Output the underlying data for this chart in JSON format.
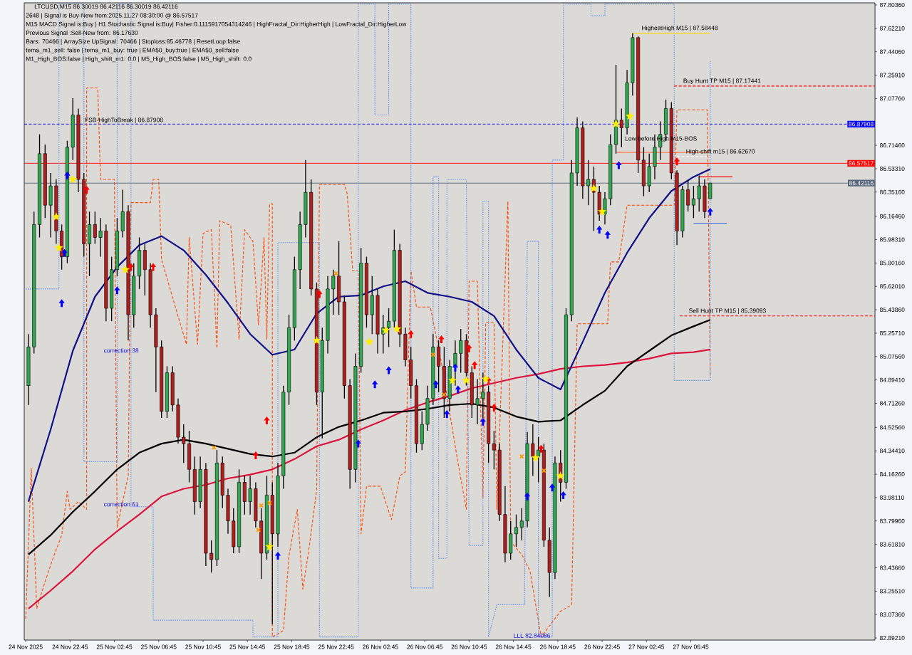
{
  "chart_data": {
    "type": "candlestick",
    "title": "LTCUSD,M15  86.30019 86.42116 86.30019 86.42116",
    "x": [
      "2025-11-24T19:00",
      "2025-11-24T19:30",
      "2025-11-24T20:00",
      "2025-11-24T20:30",
      "2025-11-24T21:00",
      "2025-11-24T21:30",
      "2025-11-24T22:00",
      "2025-11-24T22:30",
      "2025-11-24T23:00",
      "2025-11-24T23:30",
      "2025-11-25T00:00",
      "2025-11-25T00:30",
      "2025-11-25T01:00",
      "2025-11-25T01:30",
      "2025-11-25T02:00",
      "2025-11-25T02:30",
      "2025-11-25T03:00",
      "2025-11-25T03:30",
      "2025-11-25T04:00",
      "2025-11-25T04:30",
      "2025-11-25T05:00",
      "2025-11-25T05:30",
      "2025-11-25T06:00",
      "2025-11-25T06:30",
      "2025-11-25T07:00",
      "2025-11-25T07:30",
      "2025-11-25T08:00",
      "2025-11-25T08:30",
      "2025-11-25T09:00",
      "2025-11-25T09:30",
      "2025-11-25T10:00",
      "2025-11-25T10:30",
      "2025-11-25T11:00",
      "2025-11-25T11:30",
      "2025-11-25T12:00",
      "2025-11-25T12:30",
      "2025-11-25T13:00",
      "2025-11-25T13:30",
      "2025-11-25T14:00",
      "2025-11-25T14:30",
      "2025-11-25T15:00",
      "2025-11-25T15:30",
      "2025-11-25T16:00",
      "2025-11-25T16:30",
      "2025-11-25T17:00",
      "2025-11-25T17:30",
      "2025-11-25T18:00",
      "2025-11-25T18:30",
      "2025-11-25T19:00",
      "2025-11-25T19:30",
      "2025-11-25T20:00",
      "2025-11-25T20:30",
      "2025-11-25T21:00",
      "2025-11-25T21:30",
      "2025-11-25T22:00",
      "2025-11-25T22:30",
      "2025-11-25T23:00",
      "2025-11-25T23:30",
      "2025-11-26T00:00",
      "2025-11-26T00:30",
      "2025-11-26T01:00",
      "2025-11-26T01:30",
      "2025-11-26T02:00",
      "2025-11-26T02:30",
      "2025-11-26T03:00",
      "2025-11-26T03:30",
      "2025-11-26T04:00",
      "2025-11-26T04:30",
      "2025-11-26T05:00",
      "2025-11-26T05:30",
      "2025-11-26T06:00",
      "2025-11-26T06:30",
      "2025-11-26T07:00",
      "2025-11-26T07:30",
      "2025-11-26T08:00",
      "2025-11-26T08:30",
      "2025-11-26T09:00",
      "2025-11-26T09:30",
      "2025-11-26T10:00",
      "2025-11-26T10:30",
      "2025-11-26T11:00",
      "2025-11-26T11:30",
      "2025-11-26T12:00",
      "2025-11-26T12:30",
      "2025-11-26T13:00",
      "2025-11-26T13:30",
      "2025-11-26T14:00",
      "2025-11-26T14:30",
      "2025-11-26T15:00",
      "2025-11-26T15:30",
      "2025-11-26T16:00",
      "2025-11-26T16:30",
      "2025-11-26T17:00",
      "2025-11-26T17:30",
      "2025-11-26T18:00",
      "2025-11-26T18:30",
      "2025-11-26T19:00",
      "2025-11-26T19:30",
      "2025-11-26T20:00",
      "2025-11-26T20:30",
      "2025-11-26T21:00",
      "2025-11-26T21:30",
      "2025-11-26T22:00",
      "2025-11-26T22:30",
      "2025-11-26T23:00",
      "2025-11-26T23:30",
      "2025-11-27T00:00",
      "2025-11-27T00:30",
      "2025-11-27T01:00",
      "2025-11-27T01:30",
      "2025-11-27T02:00",
      "2025-11-27T02:30",
      "2025-11-27T03:00",
      "2025-11-27T03:30",
      "2025-11-27T04:00",
      "2025-11-27T04:30",
      "2025-11-27T05:00",
      "2025-11-27T05:30",
      "2025-11-27T06:00",
      "2025-11-27T06:30",
      "2025-11-27T07:00",
      "2025-11-27T07:30",
      "2025-11-27T08:00",
      "2025-11-27T08:30"
    ],
    "ohlc": [
      [
        84.85,
        85.25,
        84.7,
        85.15
      ],
      [
        85.15,
        86.2,
        85.1,
        86.1
      ],
      [
        86.1,
        86.8,
        86.0,
        86.65
      ],
      [
        86.65,
        86.72,
        86.15,
        86.25
      ],
      [
        86.25,
        86.5,
        86.0,
        86.4
      ],
      [
        86.4,
        86.45,
        85.95,
        86.05
      ],
      [
        86.05,
        86.1,
        85.75,
        85.85
      ],
      [
        85.85,
        86.75,
        85.8,
        86.7
      ],
      [
        86.7,
        87.08,
        86.6,
        86.95
      ],
      [
        86.95,
        87.0,
        86.35,
        86.45
      ],
      [
        86.45,
        86.5,
        85.85,
        85.95
      ],
      [
        85.95,
        86.2,
        85.7,
        86.1
      ],
      [
        86.1,
        86.2,
        85.95,
        86.0
      ],
      [
        86.0,
        86.15,
        85.85,
        86.05
      ],
      [
        86.05,
        86.1,
        85.35,
        85.45
      ],
      [
        85.45,
        85.85,
        85.35,
        85.75
      ],
      [
        85.75,
        86.15,
        85.7,
        86.05
      ],
      [
        86.05,
        86.37,
        86.0,
        86.2
      ],
      [
        86.2,
        86.25,
        85.2,
        85.4
      ],
      [
        85.4,
        85.8,
        85.3,
        85.7
      ],
      [
        85.7,
        86.0,
        85.6,
        85.9
      ],
      [
        85.9,
        85.95,
        85.55,
        85.75
      ],
      [
        85.75,
        85.8,
        85.3,
        85.4
      ],
      [
        85.4,
        85.45,
        84.8,
        85.15
      ],
      [
        85.15,
        85.2,
        84.6,
        84.65
      ],
      [
        84.65,
        85.0,
        84.6,
        84.95
      ],
      [
        84.95,
        85.0,
        84.65,
        84.7
      ],
      [
        84.7,
        84.75,
        84.4,
        84.45
      ],
      [
        84.45,
        84.55,
        84.25,
        84.4
      ],
      [
        84.4,
        84.5,
        84.1,
        84.2
      ],
      [
        84.2,
        84.3,
        83.85,
        83.95
      ],
      [
        83.95,
        84.3,
        83.9,
        84.2
      ],
      [
        84.2,
        84.25,
        83.45,
        83.55
      ],
      [
        83.55,
        83.65,
        83.4,
        83.5
      ],
      [
        83.5,
        84.35,
        83.45,
        84.25
      ],
      [
        84.25,
        84.3,
        83.9,
        84.0
      ],
      [
        84.0,
        84.05,
        83.7,
        83.8
      ],
      [
        83.8,
        83.9,
        83.55,
        83.6
      ],
      [
        83.6,
        84.2,
        83.55,
        84.1
      ],
      [
        84.1,
        84.15,
        83.85,
        83.95
      ],
      [
        83.95,
        84.15,
        83.85,
        84.05
      ],
      [
        84.05,
        84.1,
        83.75,
        83.8
      ],
      [
        83.8,
        83.9,
        83.35,
        83.55
      ],
      [
        83.55,
        84.15,
        83.5,
        84.0
      ],
      [
        84.0,
        84.1,
        83.0,
        83.7
      ],
      [
        83.7,
        84.25,
        83.6,
        84.15
      ],
      [
        84.15,
        84.85,
        84.05,
        84.8
      ],
      [
        84.8,
        85.4,
        84.7,
        85.3
      ],
      [
        85.3,
        85.85,
        85.2,
        85.75
      ],
      [
        85.75,
        86.2,
        85.6,
        86.1
      ],
      [
        86.1,
        86.6,
        86.0,
        86.35
      ],
      [
        86.35,
        86.45,
        85.55,
        85.6
      ],
      [
        85.6,
        85.65,
        84.7,
        84.8
      ],
      [
        84.8,
        85.3,
        84.44,
        85.2
      ],
      [
        85.2,
        85.7,
        85.1,
        85.6
      ],
      [
        85.6,
        85.75,
        85.4,
        85.7
      ],
      [
        85.7,
        85.97,
        85.4,
        85.5
      ],
      [
        85.5,
        85.55,
        84.75,
        84.85
      ],
      [
        84.85,
        84.9,
        84.05,
        84.2
      ],
      [
        84.2,
        85.1,
        84.1,
        85.0
      ],
      [
        85.0,
        85.92,
        84.95,
        85.8
      ],
      [
        85.8,
        85.85,
        85.3,
        85.4
      ],
      [
        85.4,
        85.7,
        85.25,
        85.55
      ],
      [
        85.55,
        85.6,
        85.1,
        85.25
      ],
      [
        85.25,
        85.4,
        85.1,
        85.3
      ],
      [
        85.3,
        85.45,
        85.15,
        85.35
      ],
      [
        85.35,
        86.06,
        85.3,
        85.9
      ],
      [
        85.9,
        85.95,
        85.15,
        85.25
      ],
      [
        85.25,
        85.3,
        85.0,
        85.05
      ],
      [
        85.05,
        85.15,
        84.75,
        84.85
      ],
      [
        84.85,
        84.9,
        84.33,
        84.4
      ],
      [
        84.4,
        84.65,
        84.35,
        84.55
      ],
      [
        84.55,
        84.85,
        84.5,
        84.75
      ],
      [
        84.75,
        85.25,
        84.7,
        85.15
      ],
      [
        85.15,
        85.2,
        84.8,
        85.0
      ],
      [
        85.0,
        85.15,
        84.6,
        84.75
      ],
      [
        84.75,
        85.05,
        84.65,
        85.0
      ],
      [
        85.0,
        85.2,
        84.85,
        85.1
      ],
      [
        85.1,
        85.29,
        84.95,
        85.2
      ],
      [
        85.2,
        85.25,
        84.85,
        84.95
      ],
      [
        84.95,
        85.0,
        84.6,
        84.7
      ],
      [
        84.7,
        84.9,
        84.55,
        84.75
      ],
      [
        84.75,
        84.95,
        84.6,
        84.8
      ],
      [
        84.8,
        84.85,
        84.25,
        84.4
      ],
      [
        84.4,
        84.5,
        84.2,
        84.35
      ],
      [
        84.35,
        84.4,
        83.8,
        83.85
      ],
      [
        83.85,
        84.07,
        83.48,
        83.55
      ],
      [
        83.55,
        83.8,
        83.5,
        83.7
      ],
      [
        83.7,
        83.85,
        83.6,
        83.75
      ],
      [
        83.75,
        83.9,
        83.65,
        83.8
      ],
      [
        83.8,
        84.49,
        83.75,
        84.4
      ],
      [
        84.4,
        84.55,
        84.15,
        84.3
      ],
      [
        84.3,
        84.45,
        84.1,
        84.35
      ],
      [
        84.35,
        84.4,
        83.6,
        83.65
      ],
      [
        83.65,
        83.75,
        83.21,
        83.4
      ],
      [
        83.4,
        84.3,
        83.35,
        84.25
      ],
      [
        84.25,
        84.35,
        83.95,
        84.1
      ],
      [
        84.1,
        85.45,
        84.05,
        85.4
      ],
      [
        85.4,
        86.6,
        85.35,
        86.5
      ],
      [
        86.5,
        86.93,
        86.4,
        86.85
      ],
      [
        86.85,
        86.9,
        86.3,
        86.4
      ],
      [
        86.4,
        86.6,
        86.25,
        86.45
      ],
      [
        86.45,
        86.55,
        86.05,
        86.35
      ],
      [
        86.35,
        86.4,
        86.13,
        86.18
      ],
      [
        86.18,
        86.35,
        86.1,
        86.3
      ],
      [
        86.3,
        86.8,
        86.25,
        86.72
      ],
      [
        86.72,
        87.34,
        86.65,
        86.91
      ],
      [
        86.91,
        87.0,
        86.7,
        86.85
      ],
      [
        86.85,
        87.3,
        86.8,
        87.2
      ],
      [
        87.2,
        87.58448,
        87.1,
        87.55
      ],
      [
        87.55,
        87.56,
        86.5,
        86.6
      ],
      [
        86.6,
        86.7,
        86.32,
        86.4
      ],
      [
        86.4,
        86.65,
        86.35,
        86.55
      ],
      [
        86.55,
        86.8,
        86.45,
        86.7
      ],
      [
        86.7,
        86.9,
        86.6,
        86.8
      ],
      [
        86.8,
        87.07,
        86.75,
        87.0
      ],
      [
        87.0,
        87.05,
        86.45,
        86.5
      ],
      [
        86.5,
        86.52,
        85.94,
        86.05
      ],
      [
        86.05,
        86.4,
        86.0,
        86.37
      ],
      [
        86.37,
        86.45,
        86.2,
        86.25
      ],
      [
        86.25,
        86.4,
        86.15,
        86.3
      ],
      [
        86.3,
        86.48,
        86.2,
        86.4
      ],
      [
        86.4,
        86.45,
        86.15,
        86.2
      ],
      [
        86.30019,
        86.42116,
        86.30019,
        86.42116
      ]
    ],
    "series": [
      {
        "type": "line",
        "color": "#ff4500",
        "line_style": "dashed",
        "x": [
          "2025-11-24T18:45",
          "2025-11-24T19:15",
          "2025-11-24T19:45",
          "2025-11-24T20:30",
          "2025-11-24T21:15",
          "2025-11-24T22:00",
          "2025-11-24T22:30",
          "2025-11-24T22:45",
          "2025-11-24T23:30",
          "2025-11-25T00:15",
          "2025-11-25T00:15",
          "2025-11-25T01:15",
          "2025-11-25T01:30",
          "2025-11-25T02:45",
          "2025-11-25T03:00",
          "2025-11-25T04:00",
          "2025-11-25T04:15",
          "2025-11-25T06:00",
          "2025-11-25T06:15",
          "2025-11-25T06:45",
          "2025-11-25T07:00",
          "2025-11-25T08:15",
          "2025-11-25T09:15",
          "2025-11-25T09:30",
          "2025-11-25T10:15",
          "2025-11-25T10:45",
          "2025-11-25T11:30",
          "2025-11-25T12:00",
          "2025-11-25T12:15",
          "2025-11-25T13:15",
          "2025-11-25T14:00",
          "2025-11-25T14:30",
          "2025-11-25T15:15",
          "2025-11-25T15:45",
          "2025-11-25T16:15",
          "2025-11-25T16:30",
          "2025-11-25T16:45",
          "2025-11-25T17:00",
          "2025-11-25T17:00",
          "2025-11-25T18:00",
          "2025-11-25T18:30",
          "2025-11-25T19:15",
          "2025-11-25T19:45",
          "2025-11-25T20:15",
          "2025-11-25T21:00",
          "2025-11-25T21:15",
          "2025-11-25T23:30",
          "2025-11-25T23:45",
          "2025-11-26T00:15",
          "2025-11-26T00:45",
          "2025-11-26T01:00",
          "2025-11-26T01:30",
          "2025-11-26T02:45",
          "2025-11-26T03:45",
          "2025-11-26T04:30",
          "2025-11-26T05:00",
          "2025-11-26T05:30",
          "2025-11-26T06:00",
          "2025-11-26T07:15",
          "2025-11-26T08:15",
          "2025-11-26T09:45",
          "2025-11-26T10:30",
          "2025-11-26T10:45",
          "2025-11-26T11:30",
          "2025-11-26T12:00",
          "2025-11-26T12:15",
          "2025-11-26T13:00",
          "2025-11-26T13:15",
          "2025-11-26T14:15",
          "2025-11-26T14:30",
          "2025-11-26T15:30",
          "2025-11-26T16:15",
          "2025-11-26T17:15",
          "2025-11-26T19:00",
          "2025-11-26T20:00",
          "2025-11-26T20:30",
          "2025-11-26T23:15",
          "2025-11-26T23:30",
          "2025-11-27T00:15",
          "2025-11-27T01:00",
          "2025-11-27T05:15",
          "2025-11-27T05:30",
          "2025-11-27T08:15",
          "2025-11-27T08:30"
        ],
        "values": [
          83.04,
          84.21,
          83.12,
          83.33,
          83.52,
          83.69,
          84.03,
          83.89,
          83.95,
          83.89,
          87.16,
          87.16,
          86.45,
          86.45,
          83.75,
          84.15,
          86.27,
          86.27,
          86.45,
          86.45,
          85.83,
          85.46,
          85.17,
          86.0,
          85.17,
          86.03,
          86.06,
          85.14,
          86.13,
          86.09,
          85.21,
          86.06,
          85.97,
          85.32,
          86.0,
          85.21,
          86.26,
          86.26,
          82.9,
          82.95,
          83.53,
          83.89,
          83.27,
          83.55,
          84.04,
          86.41,
          86.41,
          86.34,
          85.74,
          85.74,
          83.7,
          84.07,
          84.07,
          83.81,
          84.15,
          84.18,
          85.74,
          85.46,
          85.46,
          85.03,
          84.25,
          83.89,
          85.66,
          85.66,
          83.98,
          85.34,
          85.34,
          83.89,
          86.28,
          83.64,
          83.54,
          83.41,
          82.9,
          83.1,
          83.15,
          85.33,
          85.33,
          85.81,
          85.81,
          86.25,
          86.25,
          86.99,
          86.99,
          84.91
        ]
      },
      {
        "type": "line",
        "color": "#6495ed",
        "line_style": "dotted",
        "x": [
          "2025-11-24T18:45",
          "2025-11-24T21:45",
          "2025-11-24T21:45",
          "2025-11-25T00:00",
          "2025-11-25T00:00",
          "2025-11-25T03:00",
          "2025-11-25T03:00",
          "2025-11-25T04:15",
          "2025-11-25T04:15",
          "2025-11-25T06:15",
          "2025-11-25T06:15",
          "2025-11-25T15:15",
          "2025-11-25T15:15",
          "2025-11-25T17:30",
          "2025-11-25T17:30",
          "2025-11-25T21:15",
          "2025-11-25T21:15",
          "2025-11-26T00:45",
          "2025-11-26T00:45",
          "2025-11-26T02:15",
          "2025-11-26T02:15",
          "2025-11-26T03:30",
          "2025-11-26T03:30",
          "2025-11-26T05:30",
          "2025-11-26T05:30",
          "2025-11-26T07:30",
          "2025-11-26T07:30",
          "2025-11-26T08:00",
          "2025-11-26T08:00",
          "2025-11-26T08:45",
          "2025-11-26T08:45",
          "2025-11-26T10:30",
          "2025-11-26T10:45",
          "2025-11-26T12:00",
          "2025-11-26T12:00",
          "2025-11-26T12:30",
          "2025-11-26T12:30",
          "2025-11-26T13:15",
          "2025-11-26T15:45",
          "2025-11-26T16:00",
          "2025-11-26T17:00",
          "2025-11-26T17:00",
          "2025-11-26T18:15",
          "2025-11-26T18:15",
          "2025-11-26T19:15",
          "2025-11-26T19:15",
          "2025-11-26T21:45",
          "2025-11-26T21:45",
          "2025-11-26T23:00",
          "2025-11-26T23:00",
          "2025-11-27T05:15",
          "2025-11-27T05:15",
          "2025-11-27T08:15",
          "2025-11-27T08:30",
          "2025-11-27T08:30"
        ],
        "values": [
          85.6,
          85.6,
          87.81,
          87.81,
          84.26,
          84.26,
          87.81,
          87.81,
          83.91,
          83.91,
          83.03,
          83.03,
          82.9,
          82.9,
          85.96,
          85.96,
          82.9,
          82.9,
          87.81,
          87.81,
          86.95,
          86.95,
          87.81,
          87.81,
          83.28,
          83.28,
          86.47,
          86.47,
          83.51,
          83.51,
          86.45,
          86.45,
          83.61,
          83.61,
          86.28,
          86.28,
          82.9,
          83.15,
          83.15,
          85.97,
          85.97,
          82.9,
          82.9,
          86.6,
          86.6,
          87.81,
          87.81,
          87.72,
          87.72,
          87.81,
          87.81,
          84.89,
          84.89,
          84.89,
          87.37
        ]
      },
      {
        "type": "line",
        "color": "#dc143c",
        "x": [
          "2025-11-24T19:00",
          "2025-11-24T21:00",
          "2025-11-24T23:00",
          "2025-11-25T01:00",
          "2025-11-25T03:00",
          "2025-11-25T05:00",
          "2025-11-25T07:00",
          "2025-11-25T09:00",
          "2025-11-25T11:00",
          "2025-11-25T13:00",
          "2025-11-25T15:00",
          "2025-11-25T17:00",
          "2025-11-25T19:00",
          "2025-11-25T21:00",
          "2025-11-25T23:00",
          "2025-11-26T01:00",
          "2025-11-26T03:00",
          "2025-11-26T05:00",
          "2025-11-26T07:00",
          "2025-11-26T09:00",
          "2025-11-26T11:00",
          "2025-11-26T13:00",
          "2025-11-26T15:00",
          "2025-11-26T17:00",
          "2025-11-26T19:00",
          "2025-11-26T21:00",
          "2025-11-26T23:00",
          "2025-11-27T01:00",
          "2025-11-27T03:00",
          "2025-11-27T05:00",
          "2025-11-27T07:00",
          "2025-11-27T08:30"
        ],
        "values": [
          83.12,
          83.26,
          83.41,
          83.58,
          83.72,
          83.85,
          83.99,
          84.05,
          84.08,
          84.13,
          84.16,
          84.2,
          84.28,
          84.38,
          84.43,
          84.51,
          84.58,
          84.66,
          84.72,
          84.77,
          84.83,
          84.87,
          84.91,
          84.94,
          84.98,
          85.0,
          85.01,
          85.03,
          85.06,
          85.1,
          85.11,
          85.13
        ]
      },
      {
        "type": "line",
        "color": "#000000",
        "x": [
          "2025-11-24T19:00",
          "2025-11-24T21:00",
          "2025-11-24T23:00",
          "2025-11-25T01:00",
          "2025-11-25T03:00",
          "2025-11-25T05:00",
          "2025-11-25T07:00",
          "2025-11-25T09:00",
          "2025-11-25T11:00",
          "2025-11-25T13:00",
          "2025-11-25T15:00",
          "2025-11-25T17:00",
          "2025-11-25T19:00",
          "2025-11-25T21:00",
          "2025-11-25T23:00",
          "2025-11-26T01:00",
          "2025-11-26T03:00",
          "2025-11-26T05:00",
          "2025-11-26T07:00",
          "2025-11-26T09:00",
          "2025-11-26T11:00",
          "2025-11-26T13:00",
          "2025-11-26T15:00",
          "2025-11-26T17:00",
          "2025-11-26T19:00",
          "2025-11-26T21:00",
          "2025-11-26T23:00",
          "2025-11-27T01:00",
          "2025-11-27T03:00",
          "2025-11-27T05:00",
          "2025-11-27T07:00",
          "2025-11-27T08:30"
        ],
        "values": [
          83.54,
          83.69,
          83.87,
          84.03,
          84.2,
          84.33,
          84.4,
          84.43,
          84.4,
          84.36,
          84.32,
          84.3,
          84.33,
          84.45,
          84.53,
          84.58,
          84.64,
          84.65,
          84.67,
          84.7,
          84.71,
          84.68,
          84.61,
          84.57,
          84.58,
          84.7,
          84.81,
          85.0,
          85.12,
          85.24,
          85.31,
          85.36
        ]
      },
      {
        "type": "line",
        "color": "#10108a",
        "x": [
          "2025-11-24T19:00",
          "2025-11-24T21:00",
          "2025-11-24T23:00",
          "2025-11-25T01:00",
          "2025-11-25T03:00",
          "2025-11-25T05:00",
          "2025-11-25T07:00",
          "2025-11-25T09:00",
          "2025-11-25T11:00",
          "2025-11-25T13:00",
          "2025-11-25T15:00",
          "2025-11-25T17:00",
          "2025-11-25T19:00",
          "2025-11-25T21:00",
          "2025-11-25T23:00",
          "2025-11-26T01:00",
          "2025-11-26T03:00",
          "2025-11-26T05:00",
          "2025-11-26T07:00",
          "2025-11-26T09:00",
          "2025-11-26T11:00",
          "2025-11-26T13:00",
          "2025-11-26T15:00",
          "2025-11-26T17:00",
          "2025-11-26T19:00",
          "2025-11-26T21:00",
          "2025-11-26T23:00",
          "2025-11-27T01:00",
          "2025-11-27T03:00",
          "2025-11-27T05:00",
          "2025-11-27T07:00",
          "2025-11-27T08:30"
        ],
        "values": [
          83.95,
          84.51,
          85.12,
          85.54,
          85.77,
          85.94,
          86.01,
          85.9,
          85.71,
          85.49,
          85.25,
          85.09,
          85.13,
          85.41,
          85.54,
          85.55,
          85.62,
          85.66,
          85.57,
          85.54,
          85.5,
          85.39,
          85.13,
          84.91,
          84.82,
          85.19,
          85.57,
          85.88,
          86.15,
          86.36,
          86.47,
          86.53
        ]
      },
      {
        "type": "line",
        "name": "HighestHigh   M15 | 87.58448",
        "color": "#ffd700",
        "x": [
          "2025-11-27T01:30",
          "2025-11-27T08:30"
        ],
        "values": [
          87.58448,
          87.58448
        ]
      },
      {
        "type": "line",
        "name": "Buy Hunt TP M15 | 87.17441",
        "color": "#ff0000",
        "line_style": "dashed",
        "x": [
          "2025-11-27T05:15",
          "2025-11-27T23:22"
        ],
        "values": [
          87.17441,
          87.17441
        ]
      },
      {
        "type": "line",
        "name": "Sell Hunt TP M15 | 85.39093",
        "color": "#ff0000",
        "line_style": "dashed",
        "x": [
          "2025-11-27T05:45",
          "2025-11-27T23:22"
        ],
        "values": [
          85.39093,
          85.39093
        ]
      },
      {
        "type": "line",
        "name": "High-shift m15 | 86.62670",
        "color": "#ffffff",
        "line_style": "dashed",
        "x": [
          "2025-11-27T05:30",
          "2025-11-27T08:15"
        ],
        "values": [
          86.6267,
          86.6267
        ]
      },
      {
        "type": "line",
        "name": "Low before High   M15-BOS",
        "color": "#ff5a1a",
        "x": [
          "2025-11-27T00:00",
          "2025-11-27T08:15"
        ],
        "values": [
          86.66,
          86.66
        ]
      },
      {
        "type": "line",
        "color": "#4169e1",
        "x": [
          "2025-11-27T07:00",
          "2025-11-27T10:00"
        ],
        "values": [
          86.11,
          86.11
        ]
      },
      {
        "type": "line",
        "color": "#ff0000",
        "x": [
          "2025-11-27T07:30",
          "2025-11-27T10:30"
        ],
        "values": [
          86.47,
          86.47
        ]
      },
      {
        "type": "scatter",
        "color": "#0000ff",
        "marker": "triangle",
        "x": [
          "2025-11-24T22:00",
          "2025-11-24T22:15",
          "2025-11-24T22:30",
          "2025-11-25T03:00",
          "2025-11-25T17:30",
          "2025-11-26T00:45",
          "2025-11-26T02:15",
          "2025-11-26T03:30",
          "2025-11-26T07:45",
          "2025-11-26T08:45",
          "2025-11-26T09:30",
          "2025-11-26T09:45",
          "2025-11-26T12:00",
          "2025-11-26T16:00",
          "2025-11-26T18:15",
          "2025-11-26T19:15",
          "2025-11-26T22:30",
          "2025-11-26T23:15",
          "2025-11-27T00:15",
          "2025-11-27T08:30"
        ],
        "values": [
          85.49,
          85.88,
          86.48,
          85.59,
          83.53,
          84.4,
          84.86,
          84.97,
          84.86,
          84.63,
          84.99,
          84.82,
          84.57,
          83.99,
          84.06,
          84.0,
          86.06,
          86.02,
          86.56,
          86.2
        ]
      },
      {
        "type": "scatter",
        "color": "#ff0000",
        "marker": "triangle",
        "x": [
          "2025-11-25T00:15",
          "2025-11-25T04:15",
          "2025-11-25T06:15",
          "2025-11-25T15:30",
          "2025-11-25T16:30",
          "2025-11-25T21:15",
          "2025-11-26T05:30",
          "2025-11-26T08:15",
          "2025-11-26T10:45",
          "2025-11-26T11:15",
          "2025-11-26T12:30",
          "2025-11-26T13:00",
          "2025-11-26T17:15",
          "2025-11-27T05:30"
        ],
        "values": [
          86.37,
          85.77,
          85.77,
          84.31,
          84.58,
          85.56,
          85.25,
          85.21,
          85.14,
          85.01,
          84.89,
          84.68,
          84.36,
          86.59
        ]
      },
      {
        "type": "scatter",
        "color": "#ffee00",
        "marker": "star",
        "x": [
          "2025-11-24T21:30",
          "2025-11-24T21:45",
          "2025-11-24T23:00",
          "2025-11-25T03:45",
          "2025-11-25T16:45",
          "2025-11-25T21:00",
          "2025-11-26T01:45",
          "2025-11-26T03:15",
          "2025-11-26T04:15",
          "2025-11-26T09:15",
          "2025-11-26T10:30",
          "2025-11-26T12:15",
          "2025-11-26T16:45",
          "2025-11-26T19:00",
          "2025-11-26T22:00",
          "2025-11-26T22:45",
          "2025-11-27T00:00",
          "2025-11-27T01:15"
        ],
        "values": [
          86.16,
          85.92,
          86.45,
          85.75,
          83.6,
          85.2,
          85.19,
          85.28,
          85.29,
          84.89,
          84.89,
          84.9,
          84.29,
          84.15,
          86.38,
          86.2,
          86.88,
          86.94
        ]
      },
      {
        "type": "scatter",
        "color": "#ff9900",
        "marker": "cross",
        "x": [
          "2025-11-25T11:45",
          "2025-11-25T15:45",
          "2025-11-25T16:00",
          "2025-11-25T16:45",
          "2025-11-25T22:45",
          "2025-11-26T07:30",
          "2025-11-26T08:30",
          "2025-11-26T15:30",
          "2025-11-26T17:30"
        ],
        "values": [
          84.37,
          83.73,
          83.92,
          83.94,
          85.72,
          85.09,
          84.78,
          84.3,
          84.19
        ]
      }
    ],
    "ref_lines": [
      {
        "axis": "y",
        "value": 86.87908,
        "label": "86.87908",
        "color": "#0000ff",
        "line_style": "dashed"
      },
      {
        "axis": "y",
        "value": 86.57517,
        "label": "86.57517",
        "color": "#ff0000",
        "line_style": "solid"
      },
      {
        "axis": "y",
        "value": 86.42116,
        "label": "86.42116",
        "color": "#56657c",
        "line_style": "solid"
      }
    ],
    "annotations": [
      "2648 | Signal is Buy-New from:2025.11.27 08:30:00 @ 86.57517",
      "M15 MACD Signal is:Buy | H1 Stochastic Signal is:Buy| Fisher:0.1115917054314246 | HighFractal_Dir:HigherHigh | LowFractal_Dir:HigherLow",
      "Previous Signal :Sell-New from: 86.17630",
      "Bars: 70466 | ArraySize UpSignal: 70466 | Stoploss:85.46778 | ResetLoop:false",
      "tema_m1_sell: false | tema_m1_buy: true | EMA50_buy:true | EMA50_sell:false",
      "M1_High_BOS:false | High_shift_m1: 0.0 | M5_High_BOS:false | M5_High_shift: 0.0",
      {
        "text": "FSB-HighToBreak | 86.87908",
        "x": "2025-11-25T00:00",
        "y": 86.87908
      },
      "correction 38",
      "correction 61",
      "LLL 82.84086"
    ],
    "xlim": [
      "2025-11-24T18:37",
      "2025-11-27T23:22"
    ],
    "ylim": [
      82.876,
      87.82
    ],
    "xticks": [
      {
        "value": "2025-11-24T18:45",
        "label": "24 Nov 2025"
      },
      {
        "value": "2025-11-24T22:45",
        "label": "24 Nov 22:45"
      },
      {
        "value": "2025-11-25T02:45",
        "label": "25 Nov 02:45"
      },
      {
        "value": "2025-11-25T06:45",
        "label": "25 Nov 06:45"
      },
      {
        "value": "2025-11-25T10:45",
        "label": "25 Nov 10:45"
      },
      {
        "value": "2025-11-25T14:45",
        "label": "25 Nov 14:45"
      },
      {
        "value": "2025-11-25T18:45",
        "label": "25 Nov 18:45"
      },
      {
        "value": "2025-11-25T22:45",
        "label": "25 Nov 22:45"
      },
      {
        "value": "2025-11-26T02:45",
        "label": "26 Nov 02:45"
      },
      {
        "value": "2025-11-26T06:45",
        "label": "26 Nov 06:45"
      },
      {
        "value": "2025-11-26T10:45",
        "label": "26 Nov 10:45"
      },
      {
        "value": "2025-11-26T14:45",
        "label": "26 Nov 14:45"
      },
      {
        "value": "2025-11-26T18:45",
        "label": "26 Nov 18:45"
      },
      {
        "value": "2025-11-26T22:45",
        "label": "26 Nov 22:45"
      },
      {
        "value": "2025-11-27T02:45",
        "label": "27 Nov 02:45"
      },
      {
        "value": "2025-11-27T06:45",
        "label": "27 Nov 06:45"
      }
    ],
    "yticks": [
      {
        "value": 87.8036,
        "label": "87.80360"
      },
      {
        "value": 87.6221,
        "label": "87.62210"
      },
      {
        "value": 87.4406,
        "label": "87.44060"
      },
      {
        "value": 87.2591,
        "label": "87.25910"
      },
      {
        "value": 87.0776,
        "label": "87.07760"
      },
      {
        "value": 86.7146,
        "label": "86.71460"
      },
      {
        "value": 86.5331,
        "label": "86.53310"
      },
      {
        "value": 86.3516,
        "label": "86.35160"
      },
      {
        "value": 86.1646,
        "label": "86.16460"
      },
      {
        "value": 85.9831,
        "label": "85.98310"
      },
      {
        "value": 85.8016,
        "label": "85.80160"
      },
      {
        "value": 85.6201,
        "label": "85.62010"
      },
      {
        "value": 85.4386,
        "label": "85.43860"
      },
      {
        "value": 85.2571,
        "label": "85.25710"
      },
      {
        "value": 85.0756,
        "label": "85.07560"
      },
      {
        "value": 84.8941,
        "label": "84.89410"
      },
      {
        "value": 84.7126,
        "label": "84.71260"
      },
      {
        "value": 84.5256,
        "label": "84.52560"
      },
      {
        "value": 84.3441,
        "label": "84.34410"
      },
      {
        "value": 84.1626,
        "label": "84.16260"
      },
      {
        "value": 83.9811,
        "label": "83.98110"
      },
      {
        "value": 83.7996,
        "label": "83.79960"
      },
      {
        "value": 83.6181,
        "label": "83.61810"
      },
      {
        "value": 83.4366,
        "label": "83.43660"
      },
      {
        "value": 83.2551,
        "label": "83.25510"
      },
      {
        "value": 83.0736,
        "label": "83.07360"
      },
      {
        "value": 82.8921,
        "label": "82.89210"
      }
    ]
  }
}
